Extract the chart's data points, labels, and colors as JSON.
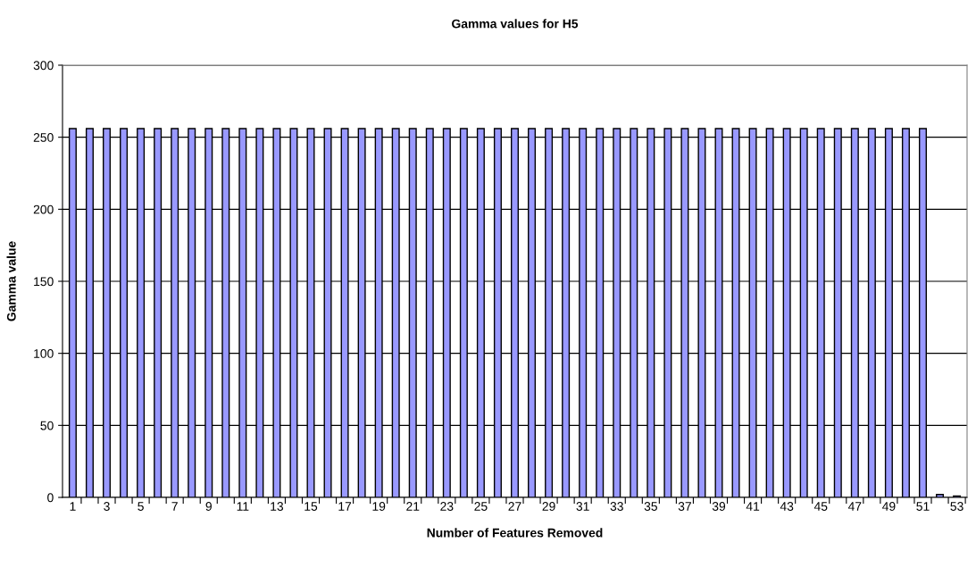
{
  "chart_data": {
    "type": "bar",
    "title": "Gamma values for H5",
    "xlabel": "Number of Features Removed",
    "ylabel": "Gamma value",
    "categories": [
      "1",
      null,
      "3",
      null,
      "5",
      null,
      "7",
      null,
      "9",
      null,
      "11",
      null,
      "13",
      null,
      "15",
      null,
      "17",
      null,
      "19",
      null,
      "21",
      null,
      "23",
      null,
      "25",
      null,
      "27",
      null,
      "29",
      null,
      "31",
      null,
      "33",
      null,
      "35",
      null,
      "37",
      null,
      "39",
      null,
      "41",
      null,
      "43",
      null,
      "45",
      null,
      "47",
      null,
      "49",
      null,
      "51",
      null,
      "53"
    ],
    "values": [
      256,
      256,
      256,
      256,
      256,
      256,
      256,
      256,
      256,
      256,
      256,
      256,
      256,
      256,
      256,
      256,
      256,
      256,
      256,
      256,
      256,
      256,
      256,
      256,
      256,
      256,
      256,
      256,
      256,
      256,
      256,
      256,
      256,
      256,
      256,
      256,
      256,
      256,
      256,
      256,
      256,
      256,
      256,
      256,
      256,
      256,
      256,
      256,
      256,
      256,
      256,
      2,
      1
    ],
    "color": "#9999ff",
    "ylim": [
      0,
      300
    ],
    "yticks": [
      0,
      50,
      100,
      150,
      200,
      250,
      300
    ],
    "grid": "y"
  }
}
